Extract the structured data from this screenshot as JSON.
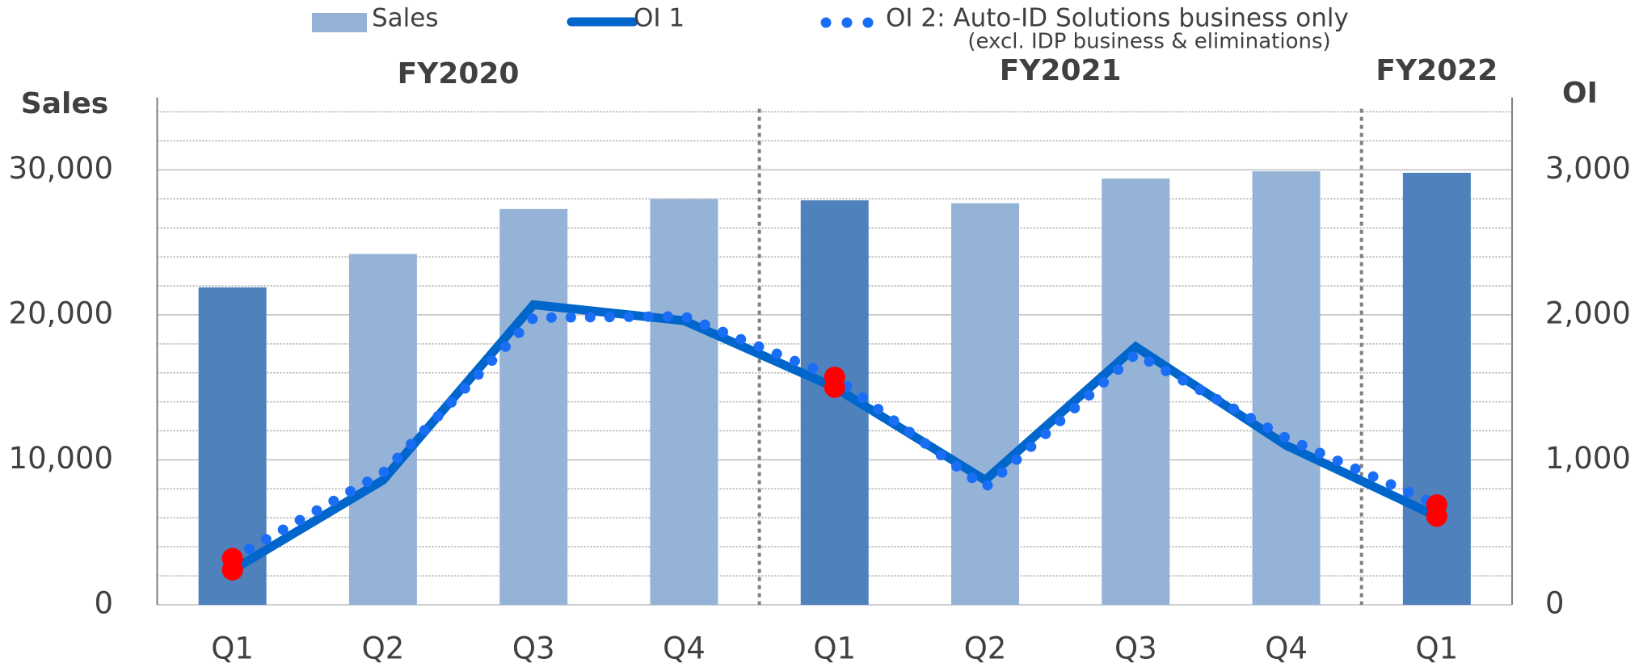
{
  "chart_data": {
    "type": "bar_line",
    "categories": [
      "Q1",
      "Q2",
      "Q3",
      "Q4",
      "Q1",
      "Q2",
      "Q3",
      "Q4",
      "Q1"
    ],
    "category_groups": [
      "FY2020",
      "FY2020",
      "FY2020",
      "FY2020",
      "FY2021",
      "FY2021",
      "FY2021",
      "FY2021",
      "FY2022"
    ],
    "ylabel": "Sales",
    "y2label": "OI",
    "ylim": [
      0,
      35000
    ],
    "yticks": [
      {
        "value": 0,
        "label": "0"
      },
      {
        "value": 10000,
        "label": "10,000"
      },
      {
        "value": 20000,
        "label": "20,000"
      },
      {
        "value": 30000,
        "label": "30,000"
      }
    ],
    "y2lim": [
      0,
      3500
    ],
    "y2ticks": [
      {
        "value": 0,
        "label": "0"
      },
      {
        "value": 1000,
        "label": "1,000"
      },
      {
        "value": 2000,
        "label": "2,000"
      },
      {
        "value": 3000,
        "label": "3,000"
      }
    ],
    "minor_grid_step": 2000,
    "series": [
      {
        "name": "Sales",
        "kind": "bar",
        "color": "#95b3d7",
        "highlight_color": "#4f81bd",
        "highlight": [
          0,
          4,
          8
        ],
        "values": [
          21900,
          24200,
          27300,
          28000,
          27900,
          27700,
          29400,
          29900,
          29800
        ]
      },
      {
        "name": "OI 1",
        "kind": "line",
        "axis": "y2",
        "color": "#0066cc",
        "highlight_color": "#ff0000",
        "highlight": [
          0,
          4,
          8
        ],
        "values": [
          240,
          860,
          2070,
          1960,
          1500,
          860,
          1780,
          1100,
          610
        ]
      },
      {
        "name": "OI 2: Auto-ID Solutions business only",
        "kind": "dots",
        "axis": "y2",
        "color": "#1a6ef5",
        "highlight_color": "#ff0000",
        "highlight": [
          0,
          4,
          8
        ],
        "values": [
          320,
          910,
          1980,
          1990,
          1570,
          810,
          1730,
          1150,
          690
        ]
      }
    ],
    "legend_note": "(excl. IDP business & eliminations)"
  }
}
